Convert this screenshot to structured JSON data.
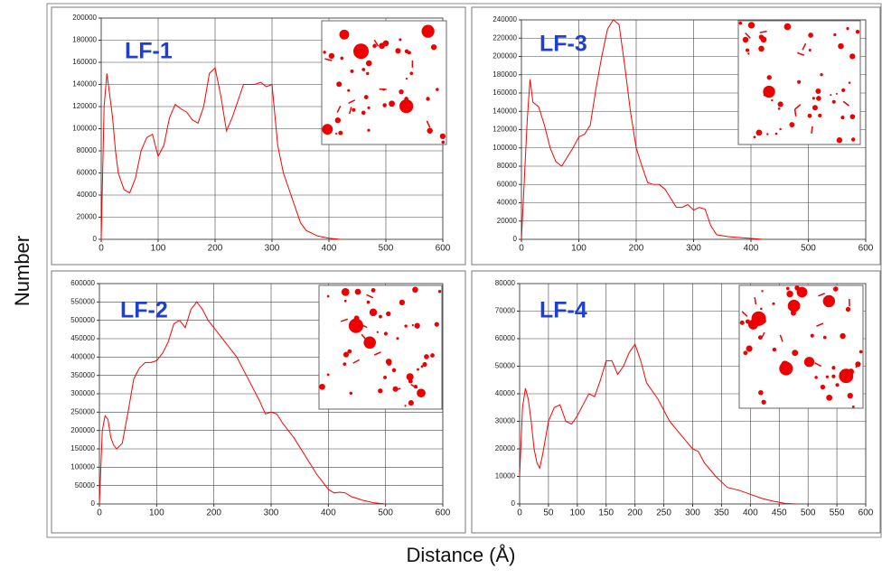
{
  "y_label": "Number",
  "x_label": "Distance (Å)",
  "chart_data": [
    {
      "type": "line",
      "title": "LF-1",
      "x": [
        0,
        5,
        10,
        15,
        20,
        25,
        30,
        40,
        50,
        60,
        70,
        80,
        90,
        100,
        110,
        120,
        130,
        140,
        150,
        160,
        170,
        180,
        190,
        200,
        210,
        220,
        230,
        240,
        250,
        260,
        270,
        280,
        290,
        300,
        310,
        320,
        330,
        340,
        350,
        360,
        380,
        400,
        420
      ],
      "series": [
        {
          "color": "#ff0000",
          "values": [
            0,
            120000,
            150000,
            130000,
            110000,
            80000,
            60000,
            45000,
            42000,
            55000,
            80000,
            92000,
            95000,
            75000,
            85000,
            110000,
            122000,
            118000,
            115000,
            108000,
            105000,
            120000,
            150000,
            155000,
            130000,
            98000,
            110000,
            125000,
            140000,
            140000,
            140000,
            142000,
            138000,
            140000,
            85000,
            60000,
            45000,
            30000,
            15000,
            8000,
            3000,
            1000,
            0
          ]
        }
      ],
      "xlim": [
        0,
        600
      ],
      "ylim": [
        0,
        200000
      ],
      "xticks": [
        0,
        100,
        200,
        300,
        400,
        500,
        600
      ],
      "yticks": [
        0,
        20000,
        40000,
        60000,
        80000,
        100000,
        120000,
        140000,
        160000,
        180000,
        200000
      ],
      "grid": true
    },
    {
      "type": "line",
      "title": "LF-3",
      "x": [
        0,
        10,
        15,
        20,
        30,
        40,
        50,
        60,
        70,
        80,
        90,
        100,
        110,
        120,
        130,
        140,
        150,
        160,
        170,
        180,
        190,
        200,
        210,
        220,
        230,
        240,
        250,
        260,
        270,
        280,
        290,
        300,
        310,
        320,
        330,
        340,
        360,
        380,
        400,
        420
      ],
      "series": [
        {
          "color": "#ff0000",
          "values": [
            0,
            130000,
            175000,
            150000,
            145000,
            125000,
            100000,
            85000,
            80000,
            90000,
            100000,
            112000,
            115000,
            125000,
            165000,
            200000,
            230000,
            240000,
            235000,
            190000,
            140000,
            100000,
            80000,
            62000,
            60000,
            60000,
            55000,
            45000,
            35000,
            35000,
            38000,
            32000,
            35000,
            33000,
            15000,
            5000,
            3000,
            2000,
            1000,
            0
          ]
        }
      ],
      "xlim": [
        0,
        600
      ],
      "ylim": [
        0,
        240000
      ],
      "xticks": [
        0,
        100,
        200,
        300,
        400,
        500,
        600
      ],
      "yticks": [
        0,
        20000,
        40000,
        60000,
        80000,
        100000,
        120000,
        140000,
        160000,
        180000,
        200000,
        220000,
        240000
      ],
      "grid": true
    },
    {
      "type": "line",
      "title": "LF-2",
      "x": [
        0,
        5,
        10,
        15,
        20,
        25,
        30,
        40,
        50,
        60,
        70,
        80,
        90,
        100,
        110,
        120,
        130,
        140,
        150,
        160,
        170,
        180,
        190,
        200,
        220,
        240,
        260,
        280,
        290,
        300,
        310,
        320,
        340,
        360,
        380,
        400,
        410,
        420,
        430,
        440,
        460,
        480,
        500
      ],
      "series": [
        {
          "color": "#ff0000",
          "values": [
            0,
            200000,
            240000,
            230000,
            180000,
            160000,
            150000,
            165000,
            250000,
            340000,
            370000,
            385000,
            385000,
            390000,
            410000,
            440000,
            490000,
            500000,
            480000,
            530000,
            550000,
            530000,
            500000,
            480000,
            440000,
            400000,
            340000,
            280000,
            245000,
            250000,
            245000,
            220000,
            180000,
            130000,
            80000,
            40000,
            30000,
            32000,
            30000,
            20000,
            10000,
            3000,
            0
          ]
        }
      ],
      "xlim": [
        0,
        600
      ],
      "ylim": [
        0,
        600000
      ],
      "xticks": [
        0,
        100,
        200,
        300,
        400,
        500,
        600
      ],
      "yticks": [
        0,
        50000,
        100000,
        150000,
        200000,
        250000,
        300000,
        350000,
        400000,
        450000,
        500000,
        550000,
        600000
      ],
      "grid": true
    },
    {
      "type": "line",
      "title": "LF-4",
      "x": [
        0,
        5,
        10,
        15,
        20,
        25,
        30,
        35,
        40,
        50,
        60,
        70,
        80,
        90,
        100,
        110,
        120,
        130,
        140,
        150,
        160,
        170,
        180,
        190,
        200,
        210,
        220,
        240,
        260,
        280,
        300,
        310,
        320,
        340,
        360,
        380,
        400,
        420,
        440,
        460,
        480
      ],
      "series": [
        {
          "color": "#ff0000",
          "values": [
            10000,
            35000,
            42000,
            38000,
            30000,
            20000,
            15000,
            13000,
            18000,
            30000,
            35000,
            36000,
            30000,
            29000,
            32000,
            36000,
            40000,
            39000,
            45000,
            52000,
            52000,
            47000,
            50000,
            55000,
            58000,
            52000,
            44000,
            38000,
            30000,
            25000,
            20000,
            19000,
            15000,
            10000,
            6000,
            5000,
            3500,
            2000,
            1000,
            200,
            0
          ]
        }
      ],
      "xlim": [
        0,
        600
      ],
      "ylim": [
        0,
        80000
      ],
      "xticks": [
        0,
        50,
        100,
        150,
        200,
        250,
        300,
        350,
        400,
        450,
        500,
        550,
        600
      ],
      "yticks": [
        0,
        10000,
        20000,
        30000,
        40000,
        50000,
        60000,
        70000,
        80000
      ],
      "grid": true
    }
  ]
}
